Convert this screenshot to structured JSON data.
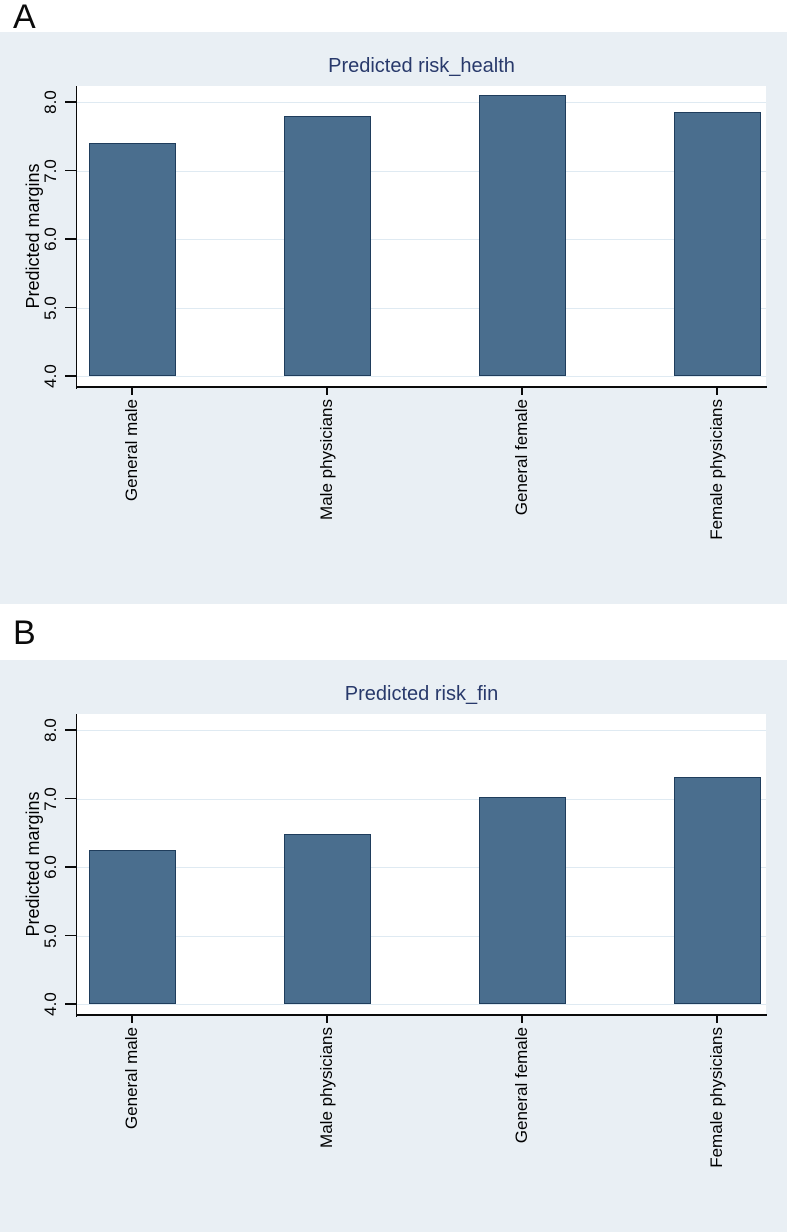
{
  "panels": [
    {
      "label": "A"
    },
    {
      "label": "B"
    }
  ],
  "colors": {
    "figure_background": "#e9eff4",
    "plot_background": "#ffffff",
    "gridline": "#dfeaf2",
    "bar_fill": "#4a6e8e",
    "bar_border": "#1f3d5c",
    "title_text": "#28396b",
    "axis": "#0a0a0a"
  },
  "chart_data": [
    {
      "type": "bar",
      "panel": "A",
      "title": "Predicted risk_health",
      "xlabel": "",
      "ylabel": "Predicted margins",
      "categories": [
        "General male",
        "Male physicians",
        "General female",
        "Female physicians"
      ],
      "values": [
        7.4,
        7.8,
        8.1,
        7.85
      ],
      "ylim": [
        4,
        8
      ],
      "yticks": [
        4,
        5,
        6,
        7,
        8
      ],
      "ytick_labels": [
        "4.0",
        "5.0",
        "6.0",
        "7.0",
        "8.0"
      ],
      "grid": true,
      "legend": "none"
    },
    {
      "type": "bar",
      "panel": "B",
      "title": "Predicted risk_fin",
      "xlabel": "",
      "ylabel": "Predicted margins",
      "categories": [
        "General male",
        "Male physicians",
        "General female",
        "Female physicians"
      ],
      "values": [
        6.25,
        6.48,
        7.02,
        7.32
      ],
      "ylim": [
        4,
        8
      ],
      "yticks": [
        4,
        5,
        6,
        7,
        8
      ],
      "ytick_labels": [
        "4.0",
        "5.0",
        "6.0",
        "7.0",
        "8.0"
      ],
      "grid": true,
      "legend": "none"
    }
  ]
}
